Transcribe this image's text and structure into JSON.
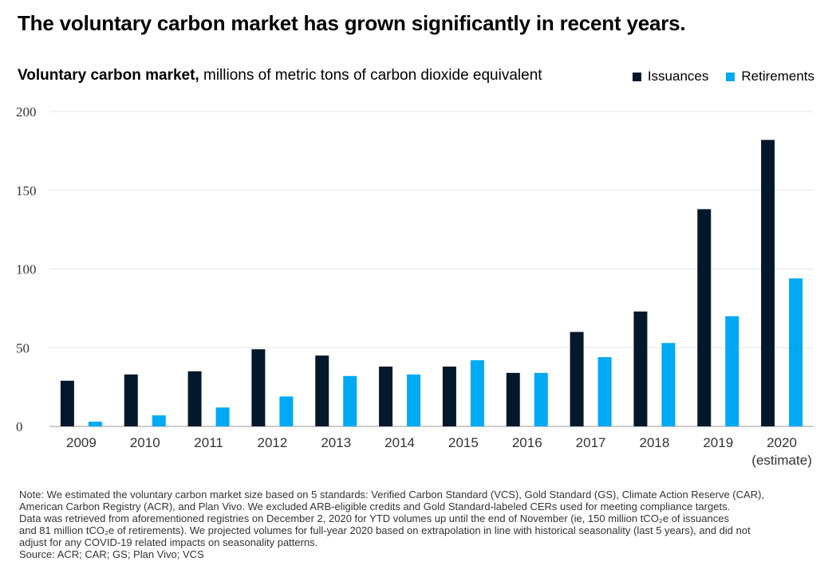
{
  "headline": "The voluntary carbon market has grown significantly in recent years.",
  "subtitle_bold": "Voluntary carbon market,",
  "subtitle_rest": " millions of metric tons of carbon dioxide equivalent",
  "colors": {
    "issuances": "#03182b",
    "retirements": "#00a9f4",
    "grid": "#e6e6e6",
    "axis": "#999999"
  },
  "chart_data": {
    "type": "bar",
    "title": "Voluntary carbon market, millions of metric tons of carbon dioxide equivalent",
    "categories": [
      "2009",
      "2010",
      "2011",
      "2012",
      "2013",
      "2014",
      "2015",
      "2016",
      "2017",
      "2018",
      "2019",
      "2020"
    ],
    "category_sublabels": [
      "",
      "",
      "",
      "",
      "",
      "",
      "",
      "",
      "",
      "",
      "",
      "(estimate)"
    ],
    "series": [
      {
        "name": "Issuances",
        "color": "#03182b",
        "values": [
          29,
          33,
          35,
          49,
          45,
          38,
          38,
          34,
          60,
          73,
          138,
          182
        ]
      },
      {
        "name": "Retirements",
        "color": "#00a9f4",
        "values": [
          3,
          7,
          12,
          19,
          32,
          33,
          42,
          34,
          44,
          53,
          70,
          94
        ]
      }
    ],
    "ylim": [
      0,
      200
    ],
    "yticks": [
      0,
      50,
      100,
      150,
      200
    ],
    "grid": true,
    "legend_position": "top-right"
  },
  "notes": [
    "Note: We estimated the voluntary carbon market size based on 5 standards: Verified Carbon Standard (VCS), Gold Standard (GS), Climate Action Reserve (CAR),",
    "American Carbon Registry (ACR), and Plan Vivo. We excluded ARB-eligible credits and Gold Standard-labeled CERs used for meeting compliance targets.",
    "Data was retrieved from aforementioned registries on December 2, 2020 for YTD volumes up until the end of November (ie, 150 million tCO₂e of issuances",
    "and 81 million tCO₂e of retirements). We projected volumes for full-year 2020 based on extrapolation in line with historical seasonality (last 5 years), and did not",
    "adjust for any COVID-19 related impacts on seasonality patterns."
  ],
  "source": "Source: ACR; CAR; GS; Plan Vivo; VCS"
}
